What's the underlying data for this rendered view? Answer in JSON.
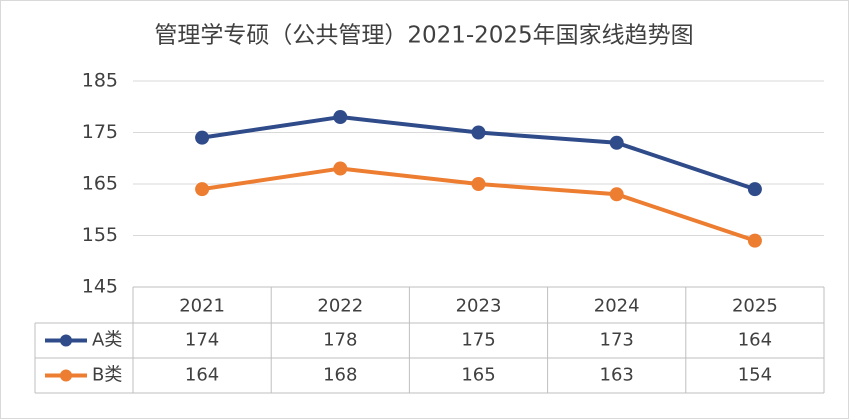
{
  "chart_data": {
    "type": "line",
    "title": "管理学专硕（公共管理）2021-2025年国家线趋势图",
    "categories": [
      "2021",
      "2022",
      "2023",
      "2024",
      "2025"
    ],
    "series": [
      {
        "name": "A类",
        "color": "#2f4b8a",
        "values": [
          174,
          178,
          175,
          173,
          164
        ]
      },
      {
        "name": "B类",
        "color": "#ed7d31",
        "values": [
          164,
          168,
          165,
          163,
          154
        ]
      }
    ],
    "ylim": [
      145,
      185
    ],
    "yticks": [
      145,
      155,
      165,
      175,
      185
    ],
    "grid": true,
    "data_table": true
  }
}
